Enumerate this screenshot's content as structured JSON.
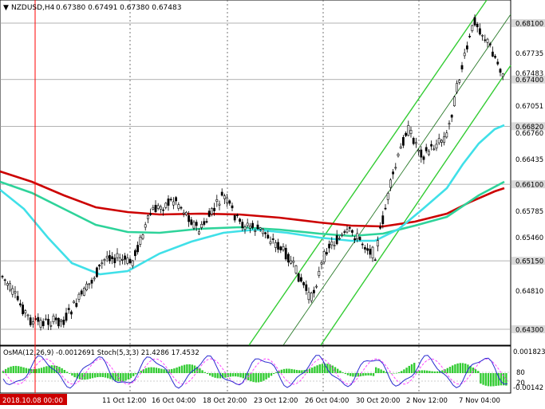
{
  "header": {
    "symbol_tf": "NZDUSD,H4",
    "ohlc": "0.67380 0.67491 0.67380 0.67483"
  },
  "price_axis": {
    "ticks": [
      "0.67735",
      "0.67051",
      "0.66760",
      "0.66435",
      "0.65785",
      "0.65460",
      "0.64810"
    ],
    "tagged_levels": [
      {
        "label": "0.68100",
        "value": 0.681,
        "bg": "#d9d9d9"
      },
      {
        "label": "0.67483",
        "value": 0.67483,
        "bg": "#ffffff"
      },
      {
        "label": "0.67400",
        "value": 0.674,
        "bg": "#d9d9d9"
      },
      {
        "label": "0.66820",
        "value": 0.6682,
        "bg": "#d9d9d9"
      },
      {
        "label": "0.66100",
        "value": 0.661,
        "bg": "#d9d9d9"
      },
      {
        "label": "0.65150",
        "value": 0.6515,
        "bg": "#d9d9d9"
      },
      {
        "label": "0.64300",
        "value": 0.643,
        "bg": "#d9d9d9"
      }
    ]
  },
  "time_axis": {
    "labels": [
      "2018.10.08 00:00",
      "11 Oct 12:00",
      "16 Oct 04:00",
      "18 Oct 20:00",
      "23 Oct 12:00",
      "26 Oct 04:00",
      "30 Oct 20:00",
      "2 Nov 12:00",
      "7 Nov 04:00"
    ]
  },
  "indicator": {
    "title": "OsMA(12,26,9) -0.0012691  Stoch(5,3,3) 21.4286 17.4532",
    "ticks": [
      "0.001823",
      "80",
      "20",
      "-0.00142"
    ]
  },
  "colors": {
    "candle": "#000000",
    "ma_red": "#cc0000",
    "ma_green": "#2ed39a",
    "ma_cyan": "#40e0e8",
    "channel": "#33cc33",
    "osma_histogram": "#33cc33",
    "stoch_main": "#2b2bd0",
    "stoch_signal": "#ff33ff",
    "crosshair": "#ff0000"
  }
}
